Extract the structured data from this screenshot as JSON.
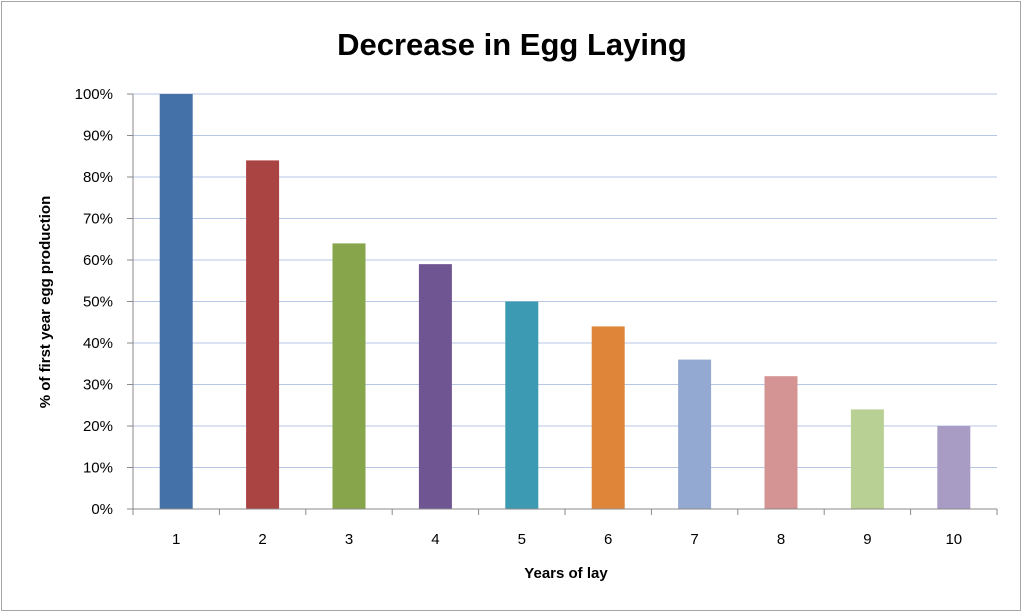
{
  "chart_data": {
    "type": "bar",
    "title": "Decrease in Egg Laying",
    "xlabel": "Years of lay",
    "ylabel": "% of first year egg production",
    "categories": [
      "1",
      "2",
      "3",
      "4",
      "5",
      "6",
      "7",
      "8",
      "9",
      "10"
    ],
    "values": [
      100,
      84,
      64,
      59,
      50,
      44,
      36,
      32,
      24,
      20
    ],
    "ylim": [
      0,
      100
    ],
    "yticks": [
      "0%",
      "10%",
      "20%",
      "30%",
      "40%",
      "50%",
      "60%",
      "70%",
      "80%",
      "90%",
      "100%"
    ],
    "grid": true,
    "legend": "none",
    "colors": [
      "#4472a8",
      "#a94442",
      "#87a54a",
      "#6f5591",
      "#3c9ab2",
      "#df8539",
      "#93a9d1",
      "#d49493",
      "#b9d095",
      "#a89cc4"
    ],
    "gridline_color": "#b7c6e3",
    "axis_color": "#8a8a8a"
  }
}
